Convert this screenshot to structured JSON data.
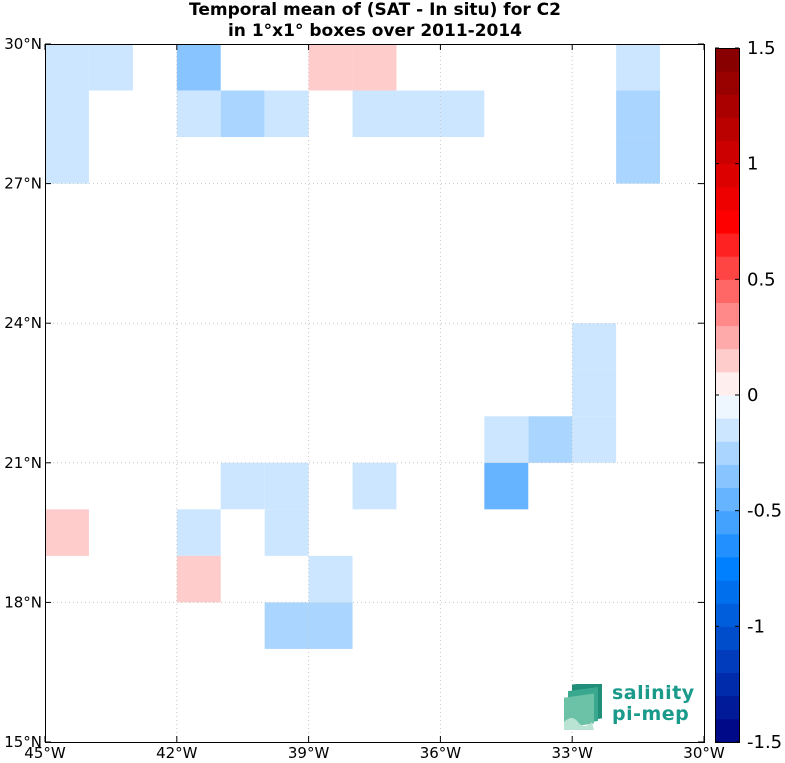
{
  "title": {
    "line1": "Temporal mean of (SAT - In situ) for C2",
    "line2": "in 1°x1° boxes over 2011-2014"
  },
  "logo": {
    "line1": "salinity",
    "line2": "pi-mep"
  },
  "chart_data": {
    "type": "heatmap",
    "xlim": [
      -45,
      -30
    ],
    "ylim": [
      15,
      30
    ],
    "x_ticks": [
      -45,
      -42,
      -39,
      -36,
      -33,
      -30
    ],
    "x_tick_labels": [
      "45°W",
      "42°W",
      "39°W",
      "36°W",
      "33°W",
      "30°W"
    ],
    "y_ticks": [
      15,
      18,
      21,
      24,
      27,
      30
    ],
    "y_tick_labels": [
      "15°N",
      "18°N",
      "21°N",
      "24°N",
      "27°N",
      "30°N"
    ],
    "grid": true,
    "cell_size_deg": 1,
    "colorbar": {
      "range": [
        -1.5,
        1.5
      ],
      "step": 0.1,
      "ticks": [
        1.5,
        1,
        0.5,
        0,
        -0.5,
        -1,
        -1.5
      ],
      "tick_labels": [
        "1.5",
        "1",
        "0.5",
        "0",
        "-0.5",
        "-1",
        "-1.5"
      ],
      "placement": "right"
    },
    "cells": [
      {
        "lon": -45,
        "lat": 29,
        "value": -0.15
      },
      {
        "lon": -44,
        "lat": 29,
        "value": -0.15
      },
      {
        "lon": -45,
        "lat": 28,
        "value": -0.15
      },
      {
        "lon": -45,
        "lat": 27,
        "value": -0.15
      },
      {
        "lon": -42,
        "lat": 29,
        "value": -0.35
      },
      {
        "lon": -42,
        "lat": 28,
        "value": -0.15
      },
      {
        "lon": -41,
        "lat": 28,
        "value": -0.25
      },
      {
        "lon": -40,
        "lat": 28,
        "value": -0.15
      },
      {
        "lon": -39,
        "lat": 29,
        "value": 0.15
      },
      {
        "lon": -38,
        "lat": 29,
        "value": 0.15
      },
      {
        "lon": -38,
        "lat": 28,
        "value": -0.15
      },
      {
        "lon": -37,
        "lat": 28,
        "value": -0.15
      },
      {
        "lon": -36,
        "lat": 28,
        "value": -0.15
      },
      {
        "lon": -32,
        "lat": 29,
        "value": -0.15
      },
      {
        "lon": -32,
        "lat": 28,
        "value": -0.25
      },
      {
        "lon": -32,
        "lat": 27,
        "value": -0.25
      },
      {
        "lon": -33,
        "lat": 23,
        "value": -0.15
      },
      {
        "lon": -33,
        "lat": 22,
        "value": -0.15
      },
      {
        "lon": -33,
        "lat": 21,
        "value": -0.15
      },
      {
        "lon": -34,
        "lat": 21,
        "value": -0.25
      },
      {
        "lon": -35,
        "lat": 21,
        "value": -0.15
      },
      {
        "lon": -35,
        "lat": 20,
        "value": -0.45
      },
      {
        "lon": -38,
        "lat": 20,
        "value": -0.15
      },
      {
        "lon": -41,
        "lat": 20,
        "value": -0.15
      },
      {
        "lon": -40,
        "lat": 20,
        "value": -0.15
      },
      {
        "lon": -40,
        "lat": 19,
        "value": -0.15
      },
      {
        "lon": -42,
        "lat": 19,
        "value": -0.15
      },
      {
        "lon": -45,
        "lat": 19,
        "value": 0.15
      },
      {
        "lon": -42,
        "lat": 18,
        "value": 0.15
      },
      {
        "lon": -39,
        "lat": 18,
        "value": -0.15
      },
      {
        "lon": -40,
        "lat": 17,
        "value": -0.25
      },
      {
        "lon": -39,
        "lat": 17,
        "value": -0.25
      }
    ]
  }
}
